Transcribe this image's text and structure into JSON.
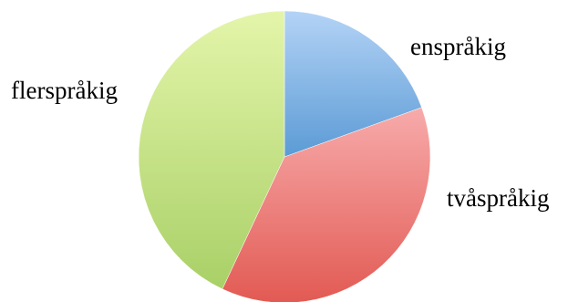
{
  "chart_data": {
    "type": "pie",
    "title": "",
    "slices": [
      {
        "label": "enspråkig",
        "value": 19.5,
        "color": "#5b9bd5",
        "color_light": "#b4d3f6"
      },
      {
        "label": "tvåspråkig",
        "value": 37.5,
        "color": "#e25a53",
        "color_light": "#f7abab"
      },
      {
        "label": "flerspråkig",
        "value": 43.0,
        "color": "#a9d067",
        "color_light": "#e4f5aa"
      }
    ],
    "start_angle_deg": 90,
    "direction": "clockwise",
    "legend": "none",
    "labels_outside": true
  }
}
